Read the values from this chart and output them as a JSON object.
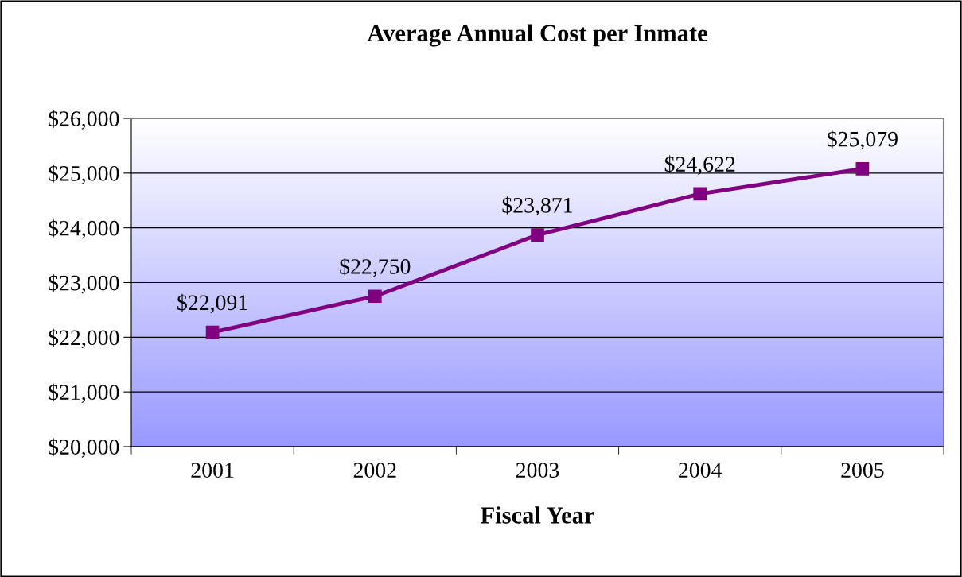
{
  "chart_data": {
    "type": "line",
    "title": "Average Annual Cost per Inmate",
    "xlabel": "Fiscal Year",
    "categories": [
      "2001",
      "2002",
      "2003",
      "2004",
      "2005"
    ],
    "series": [
      {
        "color": "#800080",
        "values": [
          22091,
          22750,
          23871,
          24622,
          25079
        ],
        "value_labels": [
          "$22,091",
          "$22,750",
          "$23,871",
          "$24,622",
          "$25,079"
        ]
      }
    ],
    "ylim": [
      20000,
      26000
    ],
    "yticks": [
      {
        "value": 20000,
        "label": "$20,000"
      },
      {
        "value": 21000,
        "label": "$21,000"
      },
      {
        "value": 22000,
        "label": "$22,000"
      },
      {
        "value": 23000,
        "label": "$23,000"
      },
      {
        "value": 24000,
        "label": "$24,000"
      },
      {
        "value": 25000,
        "label": "$25,000"
      },
      {
        "value": 26000,
        "label": "$26,000"
      }
    ],
    "grid": "y",
    "legend": false,
    "marker": "square",
    "line_style": "solid"
  }
}
